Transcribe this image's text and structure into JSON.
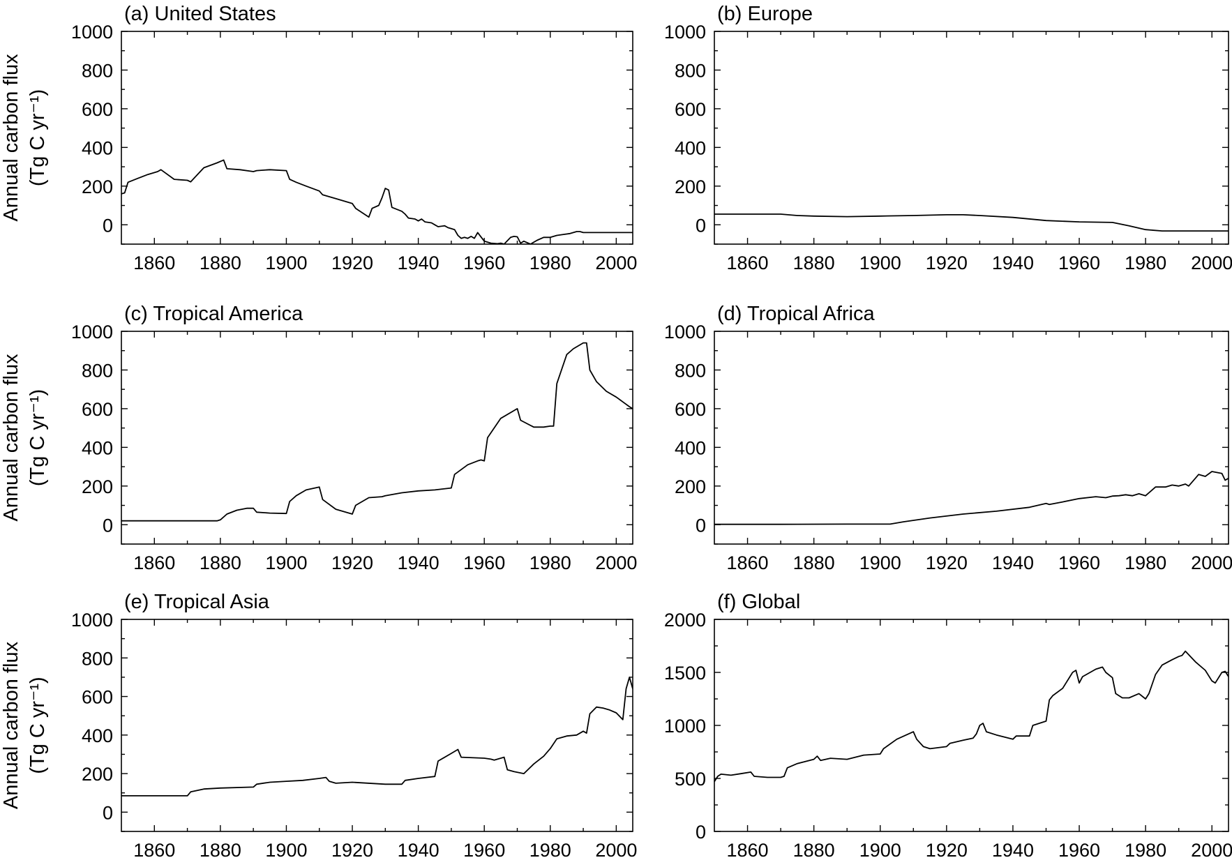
{
  "chart_data": [
    {
      "type": "line",
      "title": "(a) United States",
      "ylabel_line1": "Annual carbon flux",
      "ylabel_line2": "(Tg C yr⁻¹)",
      "xlim": [
        1850,
        2005
      ],
      "ylim": [
        -100,
        1000
      ],
      "xticks": [
        "1860",
        "1880",
        "1900",
        "1920",
        "1940",
        "1960",
        "1980",
        "2000"
      ],
      "yticks": [
        "0",
        "200",
        "400",
        "600",
        "800",
        "1000"
      ],
      "series": [
        {
          "x": [
            1850,
            1851,
            1852,
            1855,
            1858,
            1861,
            1862,
            1866,
            1870,
            1871,
            1875,
            1879,
            1881,
            1882,
            1886,
            1890,
            1891,
            1895,
            1900,
            1901,
            1903,
            1906,
            1910,
            1911,
            1915,
            1920,
            1921,
            1925,
            1926,
            1928,
            1929,
            1930,
            1931,
            1932,
            1935,
            1936,
            1937,
            1939,
            1940,
            1941,
            1942,
            1944,
            1945,
            1946,
            1948,
            1949,
            1950,
            1951,
            1952,
            1953,
            1954,
            1955,
            1956,
            1957,
            1958,
            1960,
            1962,
            1964,
            1965,
            1966,
            1968,
            1969,
            1970,
            1971,
            1972,
            1974,
            1976,
            1978,
            1980,
            1982,
            1984,
            1986,
            1988,
            1989,
            1990,
            1992,
            1995,
            2000,
            2005
          ],
          "y": [
            160,
            165,
            220,
            240,
            260,
            275,
            285,
            235,
            230,
            222,
            295,
            320,
            335,
            290,
            285,
            275,
            280,
            285,
            280,
            235,
            220,
            200,
            175,
            155,
            135,
            110,
            85,
            40,
            85,
            100,
            140,
            188,
            180,
            90,
            70,
            55,
            35,
            30,
            20,
            30,
            15,
            10,
            0,
            -10,
            -5,
            -15,
            -20,
            -25,
            -55,
            -70,
            -65,
            -70,
            -60,
            -70,
            -40,
            -85,
            -95,
            -98,
            -95,
            -100,
            -65,
            -60,
            -62,
            -95,
            -85,
            -100,
            -80,
            -65,
            -65,
            -55,
            -50,
            -45,
            -35,
            -35,
            -40,
            -40,
            -40,
            -40,
            -40
          ]
        }
      ]
    },
    {
      "type": "line",
      "title": "(b) Europe",
      "ylabel_line1": "",
      "ylabel_line2": "",
      "xlim": [
        1850,
        2005
      ],
      "ylim": [
        -100,
        1000
      ],
      "xticks": [
        "1860",
        "1880",
        "1900",
        "1920",
        "1940",
        "1960",
        "1980",
        "2000"
      ],
      "yticks": [
        "0",
        "200",
        "400",
        "600",
        "800",
        "1000"
      ],
      "series": [
        {
          "x": [
            1850,
            1860,
            1870,
            1875,
            1880,
            1890,
            1900,
            1910,
            1920,
            1925,
            1930,
            1940,
            1950,
            1960,
            1970,
            1975,
            1980,
            1985,
            2005
          ],
          "y": [
            55,
            55,
            55,
            48,
            45,
            42,
            45,
            48,
            52,
            52,
            48,
            38,
            22,
            15,
            12,
            -5,
            -25,
            -32,
            -32
          ]
        }
      ]
    },
    {
      "type": "line",
      "title": "(c) Tropical America",
      "ylabel_line1": "Annual carbon flux",
      "ylabel_line2": "(Tg C yr⁻¹)",
      "xlim": [
        1850,
        2005
      ],
      "ylim": [
        -100,
        1000
      ],
      "xticks": [
        "1860",
        "1880",
        "1900",
        "1920",
        "1940",
        "1960",
        "1980",
        "2000"
      ],
      "yticks": [
        "0",
        "200",
        "400",
        "600",
        "800",
        "1000"
      ],
      "series": [
        {
          "x": [
            1850,
            1860,
            1870,
            1879,
            1880,
            1882,
            1885,
            1888,
            1890,
            1891,
            1895,
            1900,
            1901,
            1903,
            1906,
            1910,
            1911,
            1915,
            1920,
            1921,
            1925,
            1929,
            1930,
            1935,
            1940,
            1945,
            1950,
            1951,
            1955,
            1958,
            1959,
            1960,
            1961,
            1965,
            1970,
            1971,
            1975,
            1978,
            1980,
            1981,
            1982,
            1985,
            1987,
            1990,
            1991,
            1992,
            1994,
            1997,
            2000,
            2002,
            2004,
            2005
          ],
          "y": [
            20,
            20,
            20,
            20,
            25,
            55,
            75,
            85,
            85,
            65,
            60,
            58,
            120,
            150,
            180,
            195,
            130,
            80,
            55,
            100,
            140,
            145,
            150,
            165,
            175,
            180,
            190,
            260,
            310,
            330,
            335,
            330,
            450,
            550,
            600,
            540,
            505,
            505,
            510,
            510,
            730,
            880,
            910,
            940,
            940,
            800,
            740,
            690,
            660,
            635,
            610,
            600
          ]
        }
      ]
    },
    {
      "type": "line",
      "title": "(d) Tropical Africa",
      "ylabel_line1": "",
      "ylabel_line2": "",
      "xlim": [
        1850,
        2005
      ],
      "ylim": [
        -100,
        1000
      ],
      "xticks": [
        "1860",
        "1880",
        "1900",
        "1920",
        "1940",
        "1960",
        "1980",
        "2000"
      ],
      "yticks": [
        "0",
        "200",
        "400",
        "600",
        "800",
        "1000"
      ],
      "series": [
        {
          "x": [
            1850,
            1870,
            1890,
            1903,
            1907,
            1915,
            1925,
            1935,
            1945,
            1950,
            1951,
            1955,
            1960,
            1965,
            1968,
            1970,
            1972,
            1974,
            1976,
            1978,
            1980,
            1983,
            1986,
            1988,
            1990,
            1992,
            1993,
            1995,
            1996,
            1998,
            2000,
            2003,
            2004,
            2005
          ],
          "y": [
            2,
            2,
            3,
            3,
            15,
            35,
            55,
            70,
            90,
            110,
            105,
            118,
            135,
            145,
            140,
            148,
            150,
            155,
            150,
            160,
            150,
            195,
            195,
            205,
            200,
            210,
            200,
            240,
            260,
            250,
            275,
            265,
            230,
            240
          ]
        }
      ]
    },
    {
      "type": "line",
      "title": "(e) Tropical Asia",
      "ylabel_line1": "Annual carbon flux",
      "ylabel_line2": "(Tg C yr⁻¹)",
      "xlim": [
        1850,
        2005
      ],
      "ylim": [
        -100,
        1000
      ],
      "xticks": [
        "1860",
        "1880",
        "1900",
        "1920",
        "1940",
        "1960",
        "1980",
        "2000"
      ],
      "yticks": [
        "0",
        "200",
        "400",
        "600",
        "800",
        "1000"
      ],
      "series": [
        {
          "x": [
            1850,
            1860,
            1870,
            1871,
            1875,
            1880,
            1890,
            1891,
            1895,
            1900,
            1905,
            1910,
            1912,
            1913,
            1915,
            1920,
            1930,
            1935,
            1936,
            1940,
            1945,
            1946,
            1950,
            1952,
            1953,
            1960,
            1962,
            1963,
            1966,
            1967,
            1969,
            1972,
            1975,
            1978,
            1980,
            1982,
            1985,
            1988,
            1990,
            1991,
            1992,
            1994,
            1996,
            1998,
            2000,
            2002,
            2003,
            2004,
            2005
          ],
          "y": [
            85,
            85,
            85,
            105,
            120,
            125,
            130,
            145,
            155,
            160,
            165,
            175,
            180,
            160,
            150,
            155,
            145,
            145,
            165,
            175,
            185,
            265,
            305,
            325,
            285,
            280,
            275,
            270,
            285,
            220,
            210,
            200,
            250,
            290,
            330,
            380,
            395,
            400,
            420,
            410,
            510,
            545,
            540,
            530,
            515,
            480,
            640,
            700,
            640
          ]
        }
      ]
    },
    {
      "type": "line",
      "title": "(f) Global",
      "ylabel_line1": "",
      "ylabel_line2": "",
      "xlim": [
        1850,
        2005
      ],
      "ylim": [
        0,
        2000
      ],
      "xticks": [
        "1860",
        "1880",
        "1900",
        "1920",
        "1940",
        "1960",
        "1980",
        "2000"
      ],
      "yticks": [
        "0",
        "500",
        "1000",
        "1500",
        "2000"
      ],
      "series": [
        {
          "x": [
            1850,
            1851,
            1852,
            1855,
            1858,
            1861,
            1862,
            1866,
            1870,
            1871,
            1872,
            1875,
            1880,
            1881,
            1882,
            1885,
            1890,
            1895,
            1900,
            1901,
            1905,
            1910,
            1911,
            1913,
            1915,
            1920,
            1921,
            1925,
            1928,
            1929,
            1930,
            1931,
            1932,
            1935,
            1940,
            1941,
            1945,
            1946,
            1950,
            1951,
            1952,
            1955,
            1958,
            1959,
            1960,
            1961,
            1965,
            1967,
            1968,
            1970,
            1971,
            1973,
            1975,
            1978,
            1980,
            1981,
            1983,
            1985,
            1988,
            1990,
            1991,
            1992,
            1995,
            1998,
            2000,
            2001,
            2003,
            2004,
            2005
          ],
          "y": [
            470,
            520,
            540,
            530,
            545,
            560,
            520,
            510,
            510,
            520,
            600,
            640,
            680,
            710,
            670,
            690,
            680,
            720,
            730,
            780,
            870,
            940,
            870,
            800,
            780,
            800,
            830,
            860,
            880,
            920,
            1000,
            1020,
            940,
            910,
            870,
            900,
            900,
            1000,
            1040,
            1240,
            1280,
            1350,
            1500,
            1520,
            1400,
            1460,
            1530,
            1550,
            1500,
            1450,
            1300,
            1260,
            1260,
            1300,
            1250,
            1300,
            1480,
            1570,
            1620,
            1650,
            1660,
            1700,
            1600,
            1520,
            1420,
            1400,
            1500,
            1510,
            1460
          ]
        }
      ]
    }
  ]
}
